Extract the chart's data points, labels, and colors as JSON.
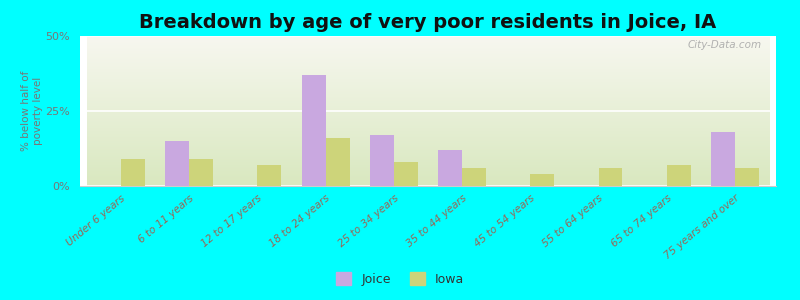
{
  "title": "Breakdown by age of very poor residents in Joice, IA",
  "categories": [
    "Under 6 years",
    "6 to 11 years",
    "12 to 17 years",
    "18 to 24 years",
    "25 to 34 years",
    "35 to 44 years",
    "45 to 54 years",
    "55 to 64 years",
    "65 to 74 years",
    "75 years and over"
  ],
  "joice_values": [
    0,
    15,
    0,
    37,
    17,
    12,
    0,
    0,
    0,
    18
  ],
  "iowa_values": [
    9,
    9,
    7,
    16,
    8,
    6,
    4,
    6,
    7,
    6
  ],
  "joice_color": "#c9a8e0",
  "iowa_color": "#cdd47a",
  "background_color": "#00ffff",
  "ylabel": "% below half of\npoverty level",
  "ylim": [
    0,
    50
  ],
  "yticks": [
    0,
    25,
    50
  ],
  "ytick_labels": [
    "0%",
    "25%",
    "50%"
  ],
  "title_fontsize": 14,
  "bar_width": 0.35,
  "watermark": "City-Data.com"
}
